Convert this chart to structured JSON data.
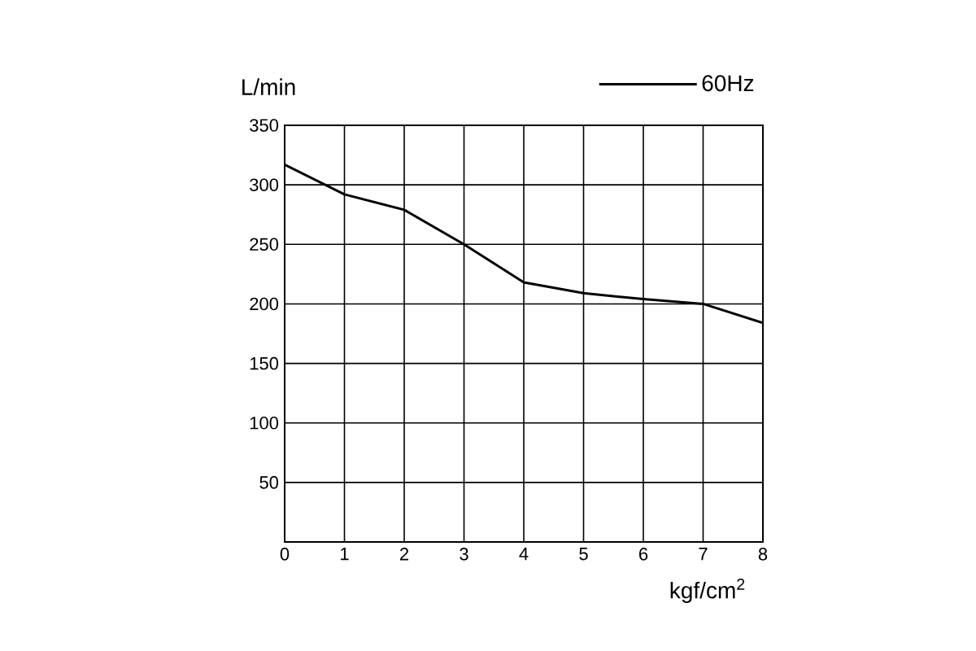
{
  "chart_data": {
    "type": "line",
    "xlabel": "kgf/cm$^{2}$",
    "ylabel": "L/min",
    "x": [
      0,
      1,
      2,
      3,
      4,
      5,
      6,
      7,
      8
    ],
    "series": [
      {
        "name": "60Hz",
        "color": "#000000",
        "values": [
          317,
          292,
          279,
          250,
          218,
          209,
          204,
          200,
          184
        ]
      }
    ],
    "xlim": [
      0,
      8
    ],
    "ylim": [
      0,
      350
    ],
    "xticks": [
      0,
      1,
      2,
      3,
      4,
      5,
      6,
      7,
      8
    ],
    "yticks": [
      50,
      100,
      150,
      200,
      250,
      300,
      350
    ],
    "grid": true,
    "legend": "top right",
    "marker": "none",
    "line_style": "solid"
  }
}
